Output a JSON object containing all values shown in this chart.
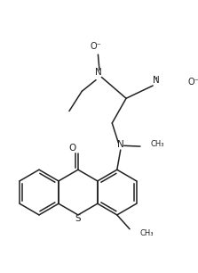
{
  "bg_color": "#ffffff",
  "line_color": "#222222",
  "line_width": 1.1,
  "font_size": 7.0,
  "figsize": [
    2.23,
    3.06
  ],
  "dpi": 100,
  "xlim": [
    0,
    223
  ],
  "ylim": [
    0,
    306
  ]
}
